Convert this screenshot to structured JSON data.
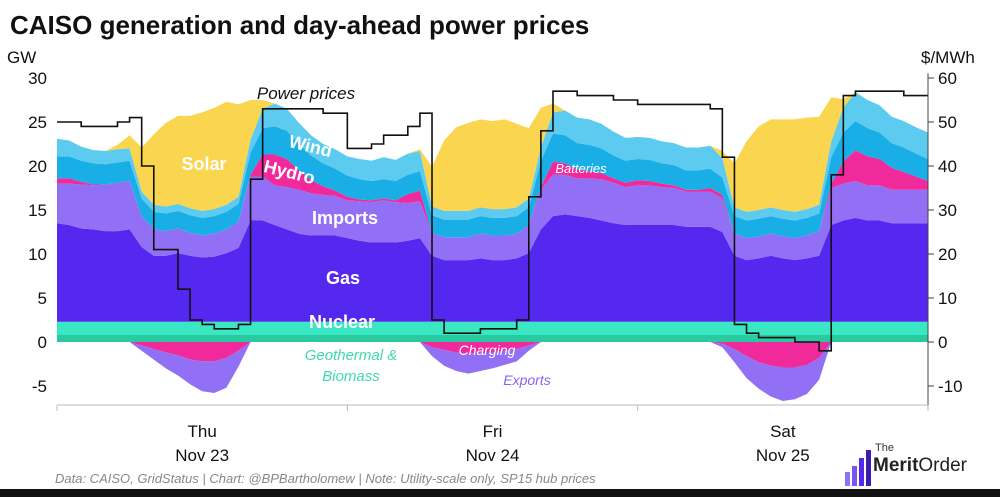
{
  "title": "CAISO generation and day-ahead power prices",
  "source": "Data: CAISO, GridStatus | Chart: @BPBartholomew | Note: Utility-scale only, SP15 hub prices",
  "logo": {
    "the": "The",
    "merit": "Merit",
    "order": "Order"
  },
  "colors": {
    "solar": "#fad54f",
    "wind": "#5ccbef",
    "hydro": "#1aaee6",
    "batteries": "#f02a9a",
    "imports": "#9170f5",
    "gas": "#5528f0",
    "nuclear": "#39e8c2",
    "geothermal": "#27c096",
    "exports": "#9170f5",
    "price": "#111111"
  },
  "chart_data": {
    "type": "area",
    "left_axis_label": "GW",
    "right_axis_label": "$/MWh",
    "left_ticks": [
      "30",
      "25",
      "20",
      "15",
      "10",
      "5",
      "0",
      "-5"
    ],
    "right_ticks": [
      "60",
      "50",
      "40",
      "30",
      "20",
      "10",
      "0",
      "-10"
    ],
    "ylim_left": [
      -7,
      31
    ],
    "ylim_right": [
      -14,
      62
    ],
    "x_hours": [
      0,
      72
    ],
    "day_labels": [
      {
        "day": "Thu",
        "date": "Nov 23",
        "hour": 12
      },
      {
        "day": "Fri",
        "date": "Nov 24",
        "hour": 36
      },
      {
        "day": "Sat",
        "date": "Nov 25",
        "hour": 60
      }
    ],
    "x": [
      0,
      1,
      2,
      3,
      4,
      5,
      6,
      7,
      8,
      9,
      10,
      11,
      12,
      13,
      14,
      15,
      16,
      17,
      18,
      19,
      20,
      21,
      22,
      23,
      24,
      25,
      26,
      27,
      28,
      29,
      30,
      31,
      32,
      33,
      34,
      35,
      36,
      37,
      38,
      39,
      40,
      41,
      42,
      43,
      44,
      45,
      46,
      47,
      48,
      49,
      50,
      51,
      52,
      53,
      54,
      55,
      56,
      57,
      58,
      59,
      60,
      61,
      62,
      63,
      64,
      65,
      66,
      67,
      68,
      69,
      70,
      71,
      72
    ],
    "series": [
      {
        "name": "Nuclear",
        "label": "Nuclear",
        "values": [
          2.3,
          2.3,
          2.3,
          2.3,
          2.3,
          2.3,
          2.3,
          2.3,
          2.3,
          2.3,
          2.3,
          2.3,
          2.3,
          2.3,
          2.3,
          2.3,
          2.3,
          2.3,
          2.3,
          2.3,
          2.3,
          2.3,
          2.3,
          2.3,
          2.3,
          2.3,
          2.3,
          2.3,
          2.3,
          2.3,
          2.3,
          2.3,
          2.3,
          2.3,
          2.3,
          2.3,
          2.3,
          2.3,
          2.3,
          2.3,
          2.3,
          2.3,
          2.3,
          2.3,
          2.3,
          2.3,
          2.3,
          2.3,
          2.3,
          2.3,
          2.3,
          2.3,
          2.3,
          2.3,
          2.3,
          2.3,
          2.3,
          2.3,
          2.3,
          2.3,
          2.3,
          2.3,
          2.3,
          2.3,
          2.3,
          2.3,
          2.3,
          2.3,
          2.3,
          2.3,
          2.3,
          2.3,
          2.3
        ]
      },
      {
        "name": "Gas",
        "label": "Gas",
        "values": [
          11.2,
          11,
          10.6,
          10.5,
          10.3,
          10.3,
          10.5,
          8.5,
          7.5,
          7.5,
          7.8,
          7.5,
          7.3,
          7.4,
          7.8,
          8.4,
          11.5,
          11.5,
          11,
          10.5,
          10,
          9.8,
          9.8,
          9.8,
          9.5,
          9.2,
          9,
          9,
          9,
          9.2,
          9.5,
          7.5,
          7,
          7,
          7,
          7.2,
          7,
          7,
          7.2,
          7.8,
          10.5,
          12,
          12.2,
          12,
          11.8,
          11.5,
          11.2,
          11,
          11,
          11,
          11,
          11,
          10.8,
          10.8,
          10.8,
          10.2,
          7.5,
          7,
          7.2,
          7.5,
          7.2,
          7,
          7.2,
          7.5,
          11,
          11.5,
          11.8,
          11.5,
          11.5,
          11.2,
          11.2,
          11.2,
          11.2
        ]
      },
      {
        "name": "Imports",
        "label": "Imports",
        "values": [
          4.5,
          4.7,
          5,
          5,
          5.3,
          5.5,
          5.5,
          3.5,
          3,
          2.8,
          2.8,
          2.6,
          2.5,
          2.6,
          2.7,
          3,
          5,
          5,
          4.5,
          4.8,
          5,
          4.8,
          4.6,
          4.5,
          4.3,
          4.5,
          4.6,
          4.8,
          4.6,
          4.3,
          4.2,
          2.6,
          2.6,
          2.6,
          2.6,
          2.8,
          2.8,
          2.8,
          2.8,
          3.2,
          4.5,
          4.7,
          4.5,
          4.3,
          4.5,
          4.7,
          4.6,
          4.3,
          4.5,
          4.5,
          4.3,
          4.2,
          4,
          4,
          4,
          3.8,
          2.5,
          2.5,
          2.5,
          2.5,
          2.5,
          2.5,
          2.6,
          2.8,
          4.2,
          4.2,
          4.2,
          4,
          4,
          3.8,
          3.8,
          3.8,
          3.8
        ]
      },
      {
        "name": "Batteries",
        "label": "Batteries",
        "values": [
          0.6,
          0.6,
          0.3,
          0.1,
          0,
          0,
          0,
          0,
          0,
          0,
          0,
          0,
          0,
          0,
          0,
          0,
          0.2,
          2.5,
          3.5,
          3.2,
          2.2,
          1.5,
          1,
          0.6,
          0.4,
          0.2,
          0.2,
          0.2,
          0.2,
          1,
          1.2,
          0,
          0,
          0,
          0,
          0,
          0,
          0,
          0,
          0,
          0.3,
          1.5,
          1.3,
          1,
          0.8,
          0.7,
          0.5,
          0.5,
          0.6,
          0.5,
          0.4,
          0.3,
          0.2,
          0.2,
          0.4,
          0.4,
          0,
          0,
          0,
          0,
          0,
          0,
          0,
          0,
          0.5,
          2.5,
          3.5,
          3.3,
          3,
          2.5,
          2,
          1.5,
          1
        ]
      },
      {
        "name": "Hydro",
        "label": "Hydro",
        "values": [
          2.5,
          2.5,
          2.4,
          2.4,
          2.3,
          2.3,
          2.3,
          2,
          2,
          2,
          2,
          2,
          2,
          2,
          2,
          2,
          2.5,
          3,
          3.2,
          3.2,
          3,
          2.8,
          2.6,
          2.5,
          2.4,
          2.3,
          2.2,
          2.2,
          2.2,
          2.2,
          2.2,
          2,
          2,
          2,
          2,
          2,
          2,
          2,
          2,
          2,
          3,
          3.2,
          3.2,
          3,
          3,
          2.8,
          2.6,
          2.5,
          2.4,
          2.4,
          2.3,
          2.3,
          2.2,
          2.2,
          2.2,
          2,
          2,
          2,
          2,
          2,
          2,
          2,
          2,
          2,
          3,
          3.3,
          3.3,
          3.2,
          3,
          2.8,
          2.8,
          2.6,
          2.5
        ]
      },
      {
        "name": "Wind",
        "label": "Wind",
        "values": [
          2,
          1.8,
          1.6,
          1.5,
          1.5,
          1.5,
          1.4,
          0.8,
          0.8,
          0.8,
          0.8,
          0.8,
          0.8,
          0.8,
          0.8,
          0.8,
          1.5,
          2.2,
          2.6,
          2.5,
          2.4,
          2.3,
          2.2,
          2.2,
          2.2,
          2.3,
          2.3,
          2.5,
          2.4,
          2.4,
          2.3,
          1,
          1,
          1,
          1,
          1,
          1,
          1,
          1,
          1,
          1.5,
          2.4,
          2.8,
          2.9,
          2.9,
          2.8,
          2.7,
          2.6,
          2.5,
          2.5,
          2.5,
          2.5,
          2.6,
          2.6,
          2.6,
          2.2,
          1,
          1,
          1,
          1,
          1,
          1,
          1,
          1,
          1.8,
          2.8,
          3.3,
          3.2,
          3.1,
          3,
          3,
          3,
          3
        ]
      },
      {
        "name": "Solar",
        "label": "Solar",
        "values": [
          0,
          0,
          0,
          0,
          0,
          0.5,
          1.5,
          5,
          8,
          9.5,
          10,
          10.5,
          11.2,
          11.5,
          11.7,
          10.5,
          4.5,
          1,
          0,
          0,
          0,
          0,
          0,
          0,
          0,
          0,
          0,
          0,
          0,
          0,
          0.2,
          4.5,
          8,
          9.5,
          10,
          10,
          10,
          10.2,
          9.5,
          8,
          4.5,
          1,
          0,
          0,
          0,
          0,
          0,
          0,
          0,
          0,
          0,
          0,
          0,
          0,
          0,
          0.8,
          5,
          8,
          9.5,
          10,
          10.3,
          10.5,
          10.4,
          10,
          5,
          1,
          0,
          0,
          0,
          0,
          0,
          0,
          0
        ]
      },
      {
        "name": "Charging",
        "label": "Charging",
        "values": [
          0,
          0,
          0,
          0,
          0,
          0,
          0,
          -0.4,
          -0.8,
          -1.2,
          -1.5,
          -2,
          -2.2,
          -2.2,
          -1.8,
          -1,
          0,
          0,
          0,
          0,
          0,
          0,
          0,
          0,
          0,
          0,
          0,
          0,
          0,
          0,
          0,
          -0.6,
          -0.9,
          -1.2,
          -1.3,
          -1.2,
          -1.2,
          -1,
          -0.8,
          -0.4,
          0,
          0,
          0,
          0,
          0,
          0,
          0,
          0,
          0,
          0,
          0,
          0,
          0,
          0,
          0,
          -0.2,
          -0.8,
          -1.6,
          -2.3,
          -2.7,
          -2.9,
          -2.9,
          -2.6,
          -1.8,
          0,
          0,
          0,
          0,
          0,
          0,
          0,
          0,
          0
        ]
      },
      {
        "name": "Exports",
        "label": "Exports",
        "values": [
          0,
          0,
          0,
          0,
          0,
          0,
          0,
          -0.6,
          -1.2,
          -1.8,
          -2.3,
          -2.8,
          -3.4,
          -3.6,
          -3.4,
          -1.8,
          0,
          0,
          0,
          0,
          0,
          0,
          0,
          0,
          0,
          0,
          0,
          0,
          0,
          0,
          0,
          -1,
          -1.8,
          -2.1,
          -2.3,
          -2.1,
          -1.8,
          -1.6,
          -1.4,
          -0.6,
          0,
          0,
          0,
          0,
          0,
          0,
          0,
          0,
          0,
          0,
          0,
          0,
          0,
          0,
          0,
          -0.4,
          -1.5,
          -2.5,
          -3,
          -3.5,
          -3.8,
          -3.6,
          -3.3,
          -2.5,
          0,
          0,
          0,
          0,
          0,
          0,
          0,
          0,
          0
        ]
      },
      {
        "name": "Power prices",
        "label": "Power prices",
        "axis": "right",
        "values": [
          50,
          50,
          49,
          49,
          49,
          50,
          51,
          40,
          21,
          21,
          12,
          5,
          4,
          3,
          3,
          4,
          37,
          53,
          53,
          53,
          53,
          53,
          52,
          52,
          44,
          44,
          45,
          47,
          47,
          49,
          52,
          5,
          2,
          2,
          2,
          3,
          3,
          3,
          5,
          33,
          48,
          57,
          57,
          56,
          56,
          56,
          55,
          55,
          54,
          54,
          54,
          54,
          54,
          54,
          53,
          42,
          4,
          2,
          1,
          1,
          1,
          0,
          0,
          -2,
          38,
          56,
          57,
          57,
          57,
          57,
          56,
          56,
          56
        ]
      }
    ],
    "annotations": {
      "solar": "Solar",
      "wind": "Wind",
      "hydro": "Hydro",
      "imports": "Imports",
      "gas": "Gas",
      "nuclear": "Nuclear",
      "batteries": "Batteries",
      "geothermal": "Geothermal &",
      "biomass": "Biomass",
      "charging": "Charging",
      "exports": "Exports",
      "prices": "Power prices"
    }
  }
}
